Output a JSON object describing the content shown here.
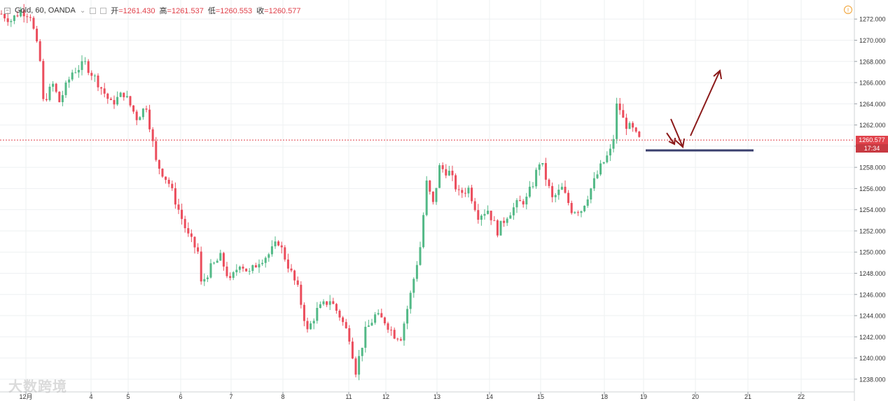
{
  "legend": {
    "symbol": "Gold, 60, OANDA",
    "open_label": "开",
    "open_value": "=1261.430",
    "high_label": "高",
    "high_value": "=1261.537",
    "low_label": "低",
    "low_value": "=1260.553",
    "close_label": "收",
    "close_value": "=1260.577"
  },
  "price_tag": {
    "price": "1260.577",
    "countdown": "17:34"
  },
  "watermark": "大数跨境",
  "colors": {
    "up": "#53b987",
    "down": "#eb4d5c",
    "price_line": "#e0424b",
    "arrow": "#8b1a1a",
    "support": "#3a3f6e"
  },
  "chart_data": {
    "type": "candlestick",
    "y_ticks": [
      "1238.000",
      "1240.000",
      "1242.000",
      "1244.000",
      "1246.000",
      "1248.000",
      "1250.000",
      "1252.000",
      "1254.000",
      "1256.000",
      "1258.000",
      "1260.000",
      "1262.000",
      "1264.000",
      "1266.000",
      "1268.000",
      "1270.000",
      "1272.000"
    ],
    "ylim": [
      1236.8,
      1273.8
    ],
    "x_ticks": [
      "12月",
      "4",
      "5",
      "6",
      "7",
      "8",
      "11",
      "12",
      "13",
      "14",
      "15",
      "18",
      "19",
      "20",
      "21",
      "22"
    ],
    "last_price": 1260.577,
    "support_level": 1259.6,
    "path": [
      [
        0,
        1272.5
      ],
      [
        3,
        1271.9
      ],
      [
        6,
        1272.8
      ],
      [
        9,
        1272.4
      ],
      [
        12,
        1268
      ],
      [
        13,
        1264.2
      ],
      [
        16,
        1265.8
      ],
      [
        18,
        1264.2
      ],
      [
        22,
        1267.0
      ],
      [
        26,
        1267.8
      ],
      [
        30,
        1266.0
      ],
      [
        34,
        1264.0
      ],
      [
        38,
        1265.0
      ],
      [
        42,
        1262.7
      ],
      [
        45,
        1263.8
      ],
      [
        48,
        1258.5
      ],
      [
        52,
        1256.5
      ],
      [
        55,
        1254.0
      ],
      [
        58,
        1251.5
      ],
      [
        61,
        1250.0
      ],
      [
        62,
        1247.0
      ],
      [
        65,
        1248.5
      ],
      [
        68,
        1249.5
      ],
      [
        71,
        1247.2
      ],
      [
        74,
        1249.0
      ],
      [
        77,
        1248.0
      ],
      [
        80,
        1249.2
      ],
      [
        83,
        1249.8
      ],
      [
        86,
        1251.0
      ],
      [
        88,
        1249.5
      ],
      [
        92,
        1246.5
      ],
      [
        95,
        1242.5
      ],
      [
        98,
        1244.5
      ],
      [
        102,
        1245.5
      ],
      [
        105,
        1244.0
      ],
      [
        108,
        1242.0
      ],
      [
        110,
        1238.8
      ],
      [
        113,
        1242.5
      ],
      [
        116,
        1244.0
      ],
      [
        119,
        1243.5
      ],
      [
        122,
        1242.2
      ],
      [
        124,
        1242.0
      ],
      [
        127,
        1246.0
      ],
      [
        130,
        1250.5
      ],
      [
        132,
        1256.5
      ],
      [
        134,
        1254.5
      ],
      [
        136,
        1258.0
      ],
      [
        139,
        1257.5
      ],
      [
        142,
        1255.5
      ],
      [
        145,
        1256.0
      ],
      [
        148,
        1253.5
      ],
      [
        151,
        1254.0
      ],
      [
        154,
        1252.0
      ],
      [
        157,
        1253.5
      ],
      [
        160,
        1254.5
      ],
      [
        163,
        1255.0
      ],
      [
        165,
        1256.5
      ],
      [
        167,
        1258.5
      ],
      [
        168,
        1258.0
      ],
      [
        171,
        1255.0
      ],
      [
        174,
        1256.0
      ],
      [
        177,
        1254.0
      ],
      [
        180,
        1254.0
      ],
      [
        183,
        1256.0
      ],
      [
        186,
        1258.0
      ],
      [
        189,
        1259.5
      ],
      [
        190,
        1260.8
      ],
      [
        191,
        1263.8
      ],
      [
        192,
        1263.5
      ],
      [
        193,
        1262.5
      ],
      [
        194,
        1262.0
      ],
      [
        196,
        1261.5
      ],
      [
        197,
        1261.0
      ],
      [
        198,
        1260.6
      ]
    ]
  }
}
